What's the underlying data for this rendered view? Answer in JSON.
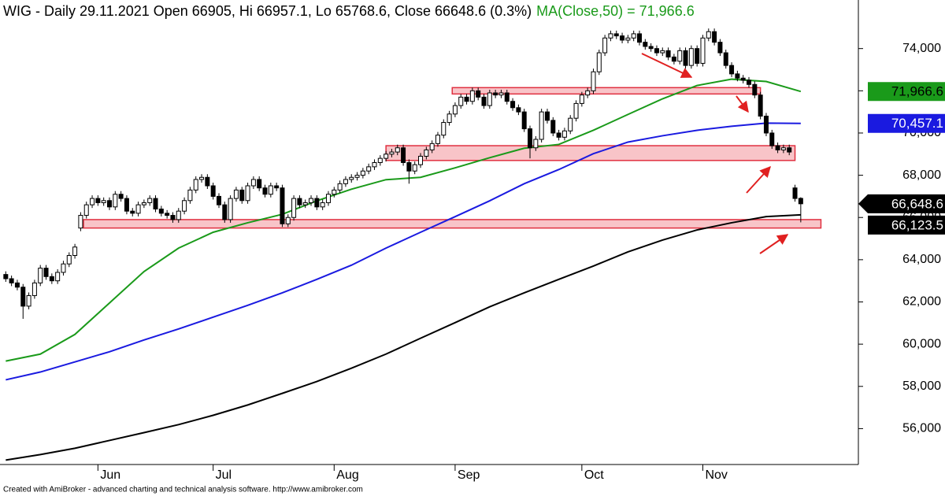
{
  "chart_data": {
    "type": "candlestick",
    "title": "WIG - Daily 29.11.2021 Open 66905, Hi 66957.1, Lo 65768.6, Close 66648.6 (0.3%)",
    "subtitle": "MA(Close,50) = 71,966.6",
    "footer": "Created with AmiBroker - advanced charting and technical analysis software. http://www.amibroker.com",
    "xlim": [
      -1,
      148
    ],
    "xticks": [
      {
        "value": 16,
        "label": "Jun"
      },
      {
        "value": 36,
        "label": "Jul"
      },
      {
        "value": 57,
        "label": "Aug"
      },
      {
        "value": 78,
        "label": "Sep"
      },
      {
        "value": 100,
        "label": "Oct"
      },
      {
        "value": 121,
        "label": "Nov"
      }
    ],
    "ylim": [
      54300,
      76300
    ],
    "yticks": [
      {
        "value": 56000,
        "label": "56,000"
      },
      {
        "value": 58000,
        "label": "58,000"
      },
      {
        "value": 60000,
        "label": "60,000"
      },
      {
        "value": 62000,
        "label": "62,000"
      },
      {
        "value": 64000,
        "label": "64,000"
      },
      {
        "value": 66000,
        "label": "66,000"
      },
      {
        "value": 68000,
        "label": "68,000"
      },
      {
        "value": 70000,
        "label": "70,000"
      },
      {
        "value": 72000,
        "label": "72,000"
      },
      {
        "value": 74000,
        "label": "74,000"
      }
    ],
    "candles": {
      "color": "#000000",
      "open": [
        63300,
        63100,
        62900,
        62700,
        61800,
        62300,
        62900,
        63600,
        63200,
        63000,
        63400,
        63800,
        64200,
        65500,
        66100,
        66600,
        66900,
        66700,
        66800,
        66500,
        67100,
        66900,
        66300,
        66200,
        66600,
        66700,
        66900,
        66400,
        66200,
        66100,
        65900,
        66300,
        66800,
        67300,
        67800,
        67900,
        67500,
        67000,
        66600,
        65900,
        66900,
        67300,
        66800,
        67500,
        67800,
        67400,
        67100,
        67500,
        67400,
        65700,
        66000,
        66900,
        66600,
        66700,
        66900,
        66500,
        66700,
        67100,
        67300,
        67600,
        67800,
        67900,
        68000,
        68200,
        68400,
        68600,
        68800,
        69000,
        69100,
        69300,
        68600,
        68200,
        68500,
        68900,
        69200,
        69500,
        69900,
        70500,
        70900,
        71300,
        71700,
        71500,
        72000,
        71700,
        71300,
        71900,
        71800,
        71900,
        71500,
        71200,
        71000,
        70200,
        69300,
        69700,
        71000,
        70600,
        70000,
        69800,
        70100,
        70700,
        71400,
        71800,
        72000,
        72900,
        73800,
        74500,
        74700,
        74600,
        74400,
        74500,
        74700,
        74300,
        74100,
        74000,
        73800,
        73900,
        73600,
        73400,
        73900,
        73200,
        74000,
        73300,
        74500,
        74800,
        74300,
        73800,
        73200,
        72800,
        72600,
        72500,
        72300,
        71800,
        70800,
        70000,
        69400,
        69200,
        69300,
        67400,
        66905
      ],
      "high": [
        63450,
        63250,
        63050,
        62850,
        62450,
        63050,
        63750,
        63750,
        63350,
        63550,
        63950,
        64350,
        64750,
        66250,
        66750,
        67050,
        67050,
        66950,
        66950,
        67250,
        67250,
        67050,
        66450,
        66750,
        66850,
        67050,
        67050,
        66550,
        66350,
        66250,
        66450,
        66950,
        67450,
        67950,
        68050,
        68050,
        67650,
        67150,
        66750,
        67050,
        67450,
        67450,
        67650,
        67950,
        67950,
        67550,
        67650,
        67650,
        67550,
        66150,
        67050,
        67050,
        66850,
        67050,
        67050,
        66850,
        67250,
        67450,
        67750,
        67950,
        68050,
        68150,
        68350,
        68550,
        68750,
        68950,
        69150,
        69250,
        69450,
        69450,
        68750,
        68650,
        69050,
        69350,
        69650,
        70050,
        70650,
        71050,
        71450,
        71850,
        71850,
        72150,
        72150,
        71850,
        72050,
        72050,
        72050,
        72050,
        71650,
        71350,
        71150,
        70350,
        69850,
        71150,
        71150,
        70750,
        70150,
        70250,
        70850,
        71550,
        71950,
        72150,
        73050,
        73950,
        74650,
        74850,
        74850,
        74750,
        74650,
        74850,
        74850,
        74450,
        74250,
        74150,
        74050,
        74050,
        73750,
        74050,
        74050,
        74150,
        74150,
        74650,
        74950,
        74950,
        74450,
        73950,
        73350,
        72950,
        72750,
        72650,
        72450,
        71950,
        70950,
        70150,
        69550,
        69450,
        69450,
        67550,
        66957.1
      ],
      "low": [
        62950,
        62750,
        62550,
        61200,
        61650,
        62150,
        62750,
        63050,
        62850,
        62850,
        63250,
        63650,
        64050,
        65350,
        65950,
        66450,
        66550,
        66550,
        66350,
        66350,
        66750,
        66150,
        66050,
        66050,
        66450,
        66550,
        66250,
        66050,
        65950,
        65750,
        65750,
        66150,
        66650,
        67150,
        67650,
        67350,
        66850,
        66450,
        65750,
        65750,
        66750,
        66650,
        66650,
        67350,
        67250,
        66950,
        66950,
        67250,
        65550,
        65550,
        65850,
        66450,
        66450,
        66550,
        66350,
        66350,
        66550,
        66950,
        67150,
        67450,
        67650,
        67750,
        67850,
        68050,
        68250,
        68450,
        68650,
        68850,
        68950,
        68450,
        67600,
        68050,
        68350,
        68750,
        69050,
        69350,
        69750,
        70350,
        70750,
        71150,
        71350,
        71350,
        71550,
        71150,
        71150,
        71650,
        71650,
        71350,
        71050,
        70850,
        70050,
        68800,
        69150,
        69550,
        70450,
        69850,
        69650,
        69650,
        69950,
        70550,
        71250,
        71650,
        71850,
        72750,
        73650,
        74350,
        74450,
        74250,
        74250,
        74350,
        74150,
        73950,
        73850,
        73650,
        73650,
        73450,
        73250,
        73250,
        73050,
        73050,
        73150,
        73150,
        74350,
        74150,
        73650,
        73050,
        72650,
        72450,
        72350,
        72150,
        71650,
        70650,
        69850,
        69250,
        69050,
        69050,
        68950,
        66750,
        65768.6
      ],
      "close": [
        63100,
        62900,
        62700,
        61800,
        62300,
        62900,
        63600,
        63200,
        63000,
        63400,
        63800,
        64200,
        64600,
        66100,
        66600,
        66900,
        66700,
        66800,
        66500,
        67100,
        66900,
        66300,
        66200,
        66600,
        66700,
        66900,
        66400,
        66200,
        66100,
        65900,
        66300,
        66800,
        67300,
        67800,
        67900,
        67500,
        67000,
        66600,
        65900,
        66900,
        67300,
        66800,
        67500,
        67800,
        67400,
        67100,
        67500,
        67400,
        65700,
        66000,
        66900,
        66600,
        66700,
        66900,
        66500,
        66700,
        67100,
        67300,
        67600,
        67800,
        67900,
        68000,
        68200,
        68400,
        68600,
        68800,
        69000,
        69100,
        69300,
        68600,
        68200,
        68500,
        68900,
        69200,
        69500,
        69900,
        70500,
        70900,
        71300,
        71700,
        71500,
        72000,
        71700,
        71300,
        71900,
        71800,
        71900,
        71500,
        71200,
        71000,
        70200,
        69300,
        69700,
        71000,
        70600,
        70000,
        69800,
        70100,
        70700,
        71400,
        71800,
        72000,
        72900,
        73800,
        74500,
        74700,
        74600,
        74400,
        74500,
        74700,
        74300,
        74100,
        74000,
        73800,
        73900,
        73600,
        73400,
        73900,
        73200,
        74000,
        73300,
        74500,
        74800,
        74300,
        73800,
        73200,
        72800,
        72600,
        72500,
        72300,
        71800,
        70800,
        70000,
        69400,
        69200,
        69300,
        69100,
        66900,
        66648.6
      ],
      "value_labels": [
        null,
        null,
        null,
        null,
        null,
        null,
        null,
        null,
        null,
        null,
        null,
        null,
        null,
        null,
        null,
        null,
        null,
        null,
        null,
        null,
        null,
        null,
        null,
        null,
        null,
        null,
        null,
        null,
        null,
        null,
        null,
        null,
        null,
        null,
        null,
        null,
        null,
        null,
        null,
        null,
        null,
        null,
        null,
        null,
        null,
        null,
        null,
        null,
        null,
        null,
        null,
        null,
        null,
        null,
        null,
        null,
        null,
        null,
        null,
        null,
        null,
        null,
        null,
        null,
        null,
        null,
        null,
        null,
        null,
        null,
        null,
        null,
        null,
        null,
        null,
        null,
        null,
        null,
        null,
        null,
        null,
        null,
        null,
        null,
        null,
        null,
        null,
        null,
        null,
        null,
        null,
        null,
        null,
        null,
        null,
        null,
        null,
        null,
        null,
        null,
        null,
        null,
        null,
        null,
        null,
        null,
        null,
        null,
        null,
        null,
        null,
        null,
        null,
        null,
        null,
        null,
        null,
        null,
        null,
        null,
        null,
        null,
        null,
        null,
        null,
        null,
        null,
        null,
        null,
        null,
        null,
        null,
        null,
        null,
        null,
        null,
        null,
        null,
        "66,648.6"
      ],
      "label_color": "#000000",
      "label_text_color": "#ffffff"
    },
    "series": [
      {
        "color": "#1a9a1a",
        "label_text_color": "#000000",
        "x": [
          0,
          6,
          12,
          18,
          24,
          30,
          36,
          42,
          48,
          54,
          60,
          66,
          72,
          78,
          84,
          90,
          96,
          102,
          108,
          114,
          120,
          126,
          132,
          138
        ],
        "values": [
          59200,
          59530,
          60460,
          61950,
          63440,
          64550,
          65300,
          65750,
          66150,
          66790,
          67340,
          67790,
          67900,
          68350,
          68830,
          69280,
          69460,
          70130,
          70880,
          71620,
          72250,
          72550,
          72440,
          71966.6
        ],
        "value_labels": [
          null,
          null,
          null,
          null,
          null,
          null,
          null,
          null,
          null,
          null,
          null,
          null,
          null,
          null,
          null,
          null,
          null,
          null,
          null,
          null,
          null,
          null,
          null,
          "71,966.6"
        ]
      },
      {
        "color": "#1a1ae0",
        "label_text_color": "#ffffff",
        "x": [
          0,
          6,
          12,
          18,
          24,
          30,
          36,
          42,
          48,
          54,
          60,
          66,
          72,
          78,
          84,
          90,
          96,
          102,
          108,
          114,
          120,
          126,
          132,
          138
        ],
        "values": [
          58310,
          58680,
          59160,
          59640,
          60200,
          60720,
          61280,
          61840,
          62430,
          63070,
          63740,
          64550,
          65300,
          66040,
          66790,
          67600,
          68270,
          69020,
          69570,
          69870,
          70130,
          70320,
          70470,
          70457.1
        ],
        "value_labels": [
          null,
          null,
          null,
          null,
          null,
          null,
          null,
          null,
          null,
          null,
          null,
          null,
          null,
          null,
          null,
          null,
          null,
          null,
          null,
          null,
          null,
          null,
          null,
          "70,457.1"
        ]
      },
      {
        "color": "#000000",
        "label_text_color": "#ffffff",
        "x": [
          0,
          6,
          12,
          18,
          24,
          30,
          36,
          42,
          48,
          54,
          60,
          66,
          72,
          78,
          84,
          90,
          96,
          102,
          108,
          114,
          120,
          126,
          132,
          138
        ],
        "values": [
          54510,
          54770,
          55070,
          55440,
          55810,
          56190,
          56630,
          57120,
          57670,
          58230,
          58860,
          59530,
          60280,
          61020,
          61770,
          62430,
          63070,
          63700,
          64370,
          64930,
          65410,
          65750,
          66040,
          66123.5
        ],
        "value_labels": [
          null,
          null,
          null,
          null,
          null,
          null,
          null,
          null,
          null,
          null,
          null,
          null,
          null,
          null,
          null,
          null,
          null,
          null,
          null,
          null,
          null,
          null,
          null,
          "66,123.5"
        ]
      }
    ],
    "zone_color": "#f8c4c8",
    "zone_border": "#e03040",
    "zones": [
      {
        "xrange": [
          13.5,
          141.5
        ],
        "yrange": [
          65500,
          65900
        ]
      },
      {
        "xrange": [
          66,
          137
        ],
        "yrange": [
          68700,
          69400
        ]
      },
      {
        "xrange": [
          77.5,
          131
        ],
        "yrange": [
          71850,
          72150
        ]
      }
    ]
  }
}
